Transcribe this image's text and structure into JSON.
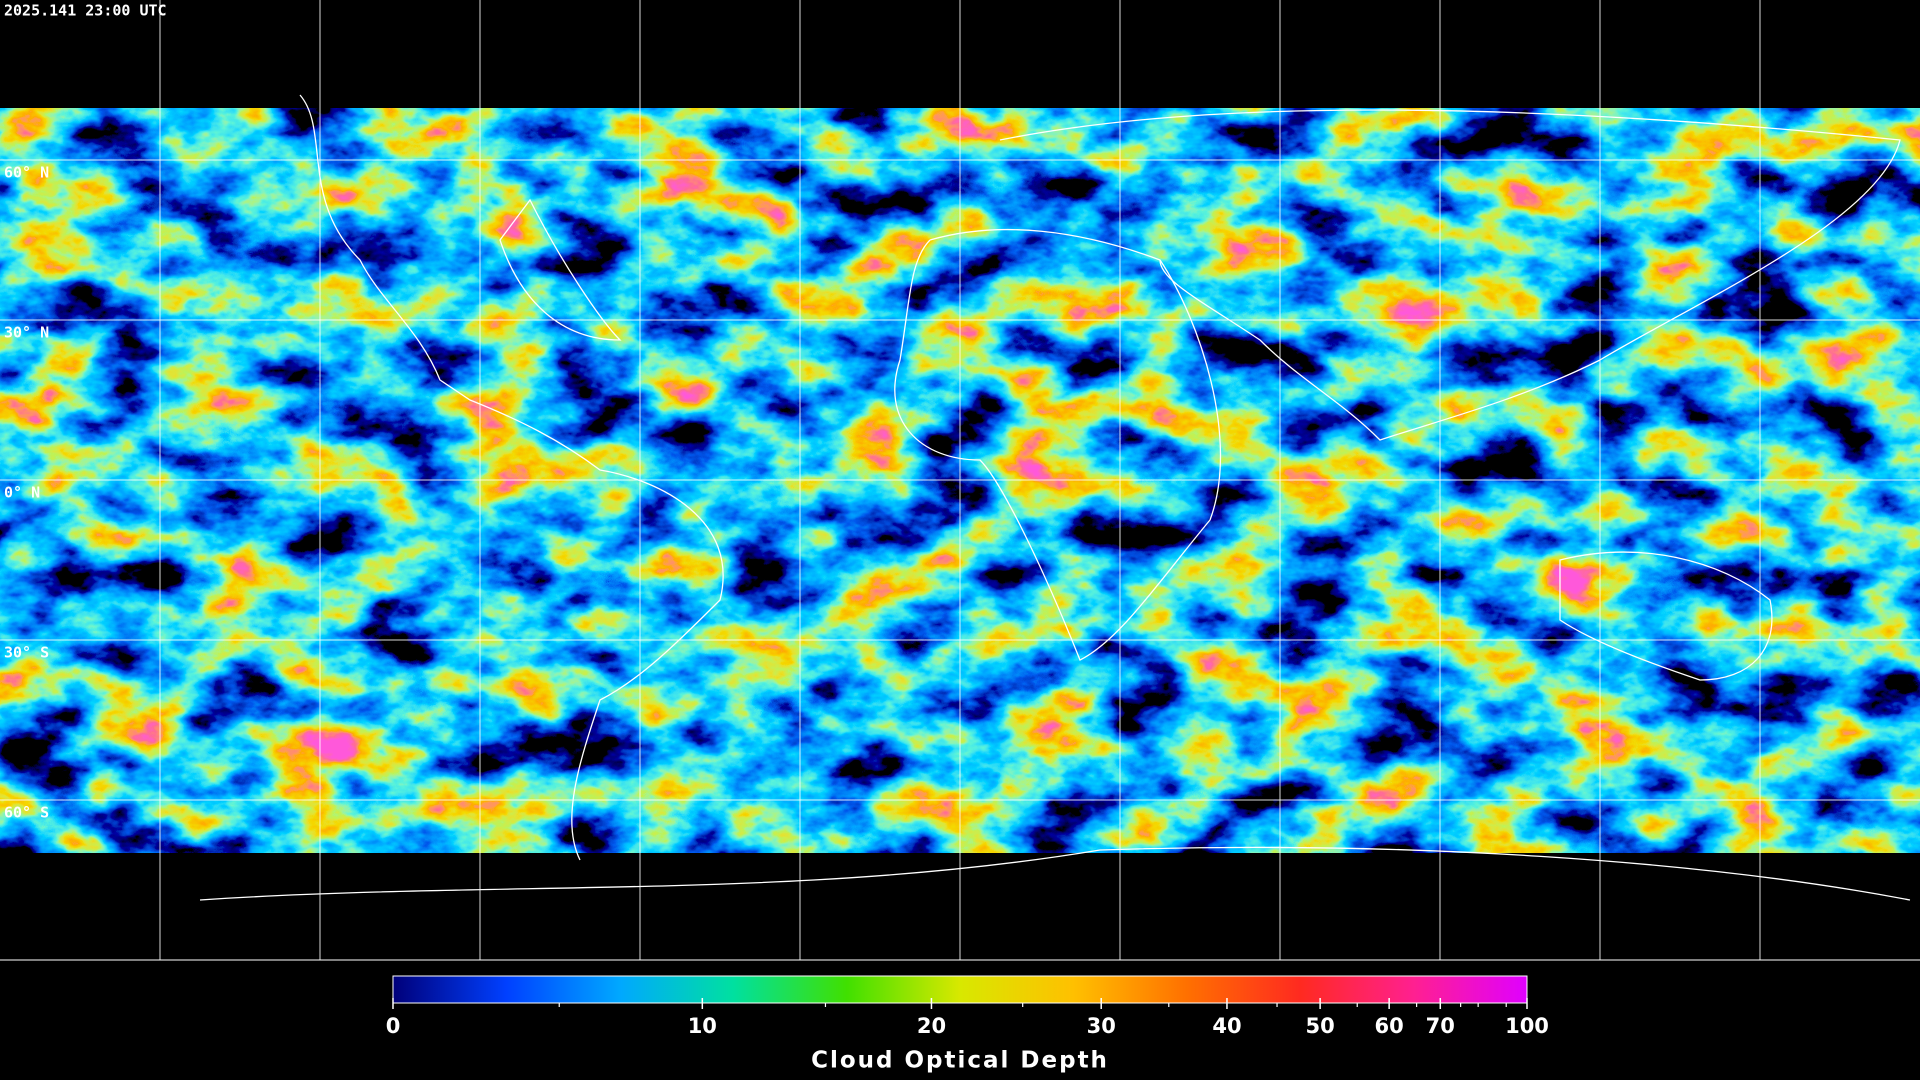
{
  "header": {
    "timestamp": "2025.141 23:00 UTC"
  },
  "map": {
    "xlim": [
      -180,
      180
    ],
    "ylim": [
      -90,
      90
    ],
    "xgrid": [
      -150,
      -120,
      -90,
      -60,
      -30,
      0,
      30,
      60,
      90,
      120,
      150
    ],
    "yticks": [
      {
        "value": 60,
        "label": "60° N"
      },
      {
        "value": 30,
        "label": "30° N"
      },
      {
        "value": 0,
        "label": "0° N"
      },
      {
        "value": -30,
        "label": "30° S"
      },
      {
        "value": -60,
        "label": "60° S"
      }
    ]
  },
  "colorbar": {
    "title": "Cloud Optical Depth",
    "lim": [
      0,
      100
    ],
    "ticks": [
      0,
      10,
      20,
      30,
      40,
      50,
      60,
      70,
      100
    ],
    "minor_ticks": [
      5,
      15,
      25,
      35,
      45,
      55,
      65,
      75,
      80,
      90
    ],
    "colors": [
      "#00007a",
      "#0040ff",
      "#00a8ff",
      "#00e0a0",
      "#40e000",
      "#d8e800",
      "#ffc000",
      "#ff7000",
      "#ff2a20",
      "#ff2090",
      "#e000ff"
    ]
  }
}
